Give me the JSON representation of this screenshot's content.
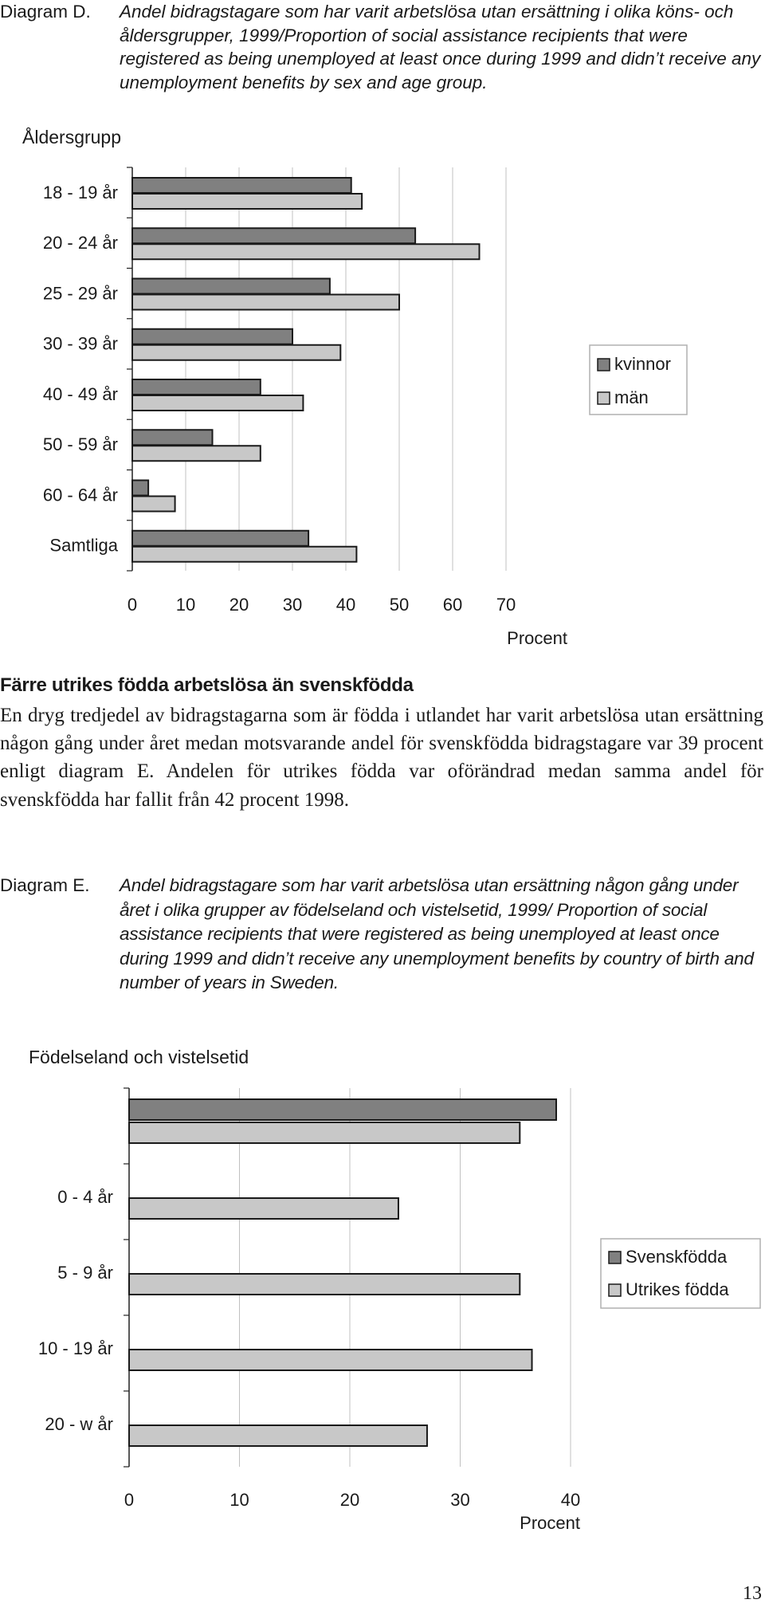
{
  "caption_d": {
    "label": "Diagram D.",
    "text": "Andel bidragstagare som har varit arbetslösa utan ersättning i olika köns- och åldersgrupper, 1999/Proportion of social assistance recipients that were registered as being unemployed at least once during 1999 and didn’t receive any unemployment benefits by sex and age group."
  },
  "section": {
    "heading": "Färre utrikes födda arbetslösa än svenskfödda",
    "paragraph": "En dryg tredjedel av bidragstagarna som är födda i utlandet har varit arbetslösa utan ersättning någon gång under året medan motsvarande andel för svenskfödda bidragstagare var 39 procent enligt diagram E. Andelen för utrikes födda var oförändrad medan samma andel för svenskfödda har fallit från 42 procent 1998."
  },
  "caption_e": {
    "label": "Diagram E.",
    "text": "Andel bidragstagare som har varit arbetslösa utan ersättning någon gång under året i olika grupper av födelseland och vistelsetid, 1999/ Proportion of social assistance recipients that were registered as being unemployed at least once during 1999 and didn’t receive any unemployment benefits by country of birth and number of years in Sweden."
  },
  "page_number": "13",
  "chart_data": [
    {
      "type": "bar",
      "orientation": "horizontal",
      "category_axis_title": "Åldersgrupp",
      "xlabel": "Procent",
      "xlim": [
        0,
        70
      ],
      "xticks": [
        0,
        10,
        20,
        30,
        40,
        50,
        60,
        70
      ],
      "grid": true,
      "legend_position": "right",
      "categories": [
        "18 - 19 år",
        "20 - 24 år",
        "25 - 29 år",
        "30 - 39 år",
        "40 - 49 år",
        "50 - 59 år",
        "60 - 64 år",
        "Samtliga"
      ],
      "series": [
        {
          "name": "kvinnor",
          "color": "#808080",
          "values": [
            41,
            53,
            37,
            30,
            24,
            15,
            3,
            33
          ]
        },
        {
          "name": "män",
          "color": "#c8c8c8",
          "values": [
            43,
            65,
            50,
            39,
            32,
            24,
            8,
            42
          ]
        }
      ]
    },
    {
      "type": "bar",
      "orientation": "horizontal",
      "category_axis_title": "Födelseland och vistelsetid",
      "xlabel": "Procent",
      "xlim": [
        0,
        40
      ],
      "xticks": [
        0,
        10,
        20,
        30,
        40
      ],
      "grid": true,
      "legend_position": "right",
      "categories": [
        "",
        "0 - 4 år",
        "5 - 9 år",
        "10 - 19 år",
        "20 - w år"
      ],
      "series": [
        {
          "name": "Svenskfödda",
          "color": "#808080",
          "values": [
            38.7,
            null,
            null,
            null,
            null
          ]
        },
        {
          "name": "Utrikes födda",
          "color": "#c8c8c8",
          "values": [
            35.4,
            24.4,
            35.4,
            36.5,
            27
          ]
        }
      ]
    }
  ]
}
